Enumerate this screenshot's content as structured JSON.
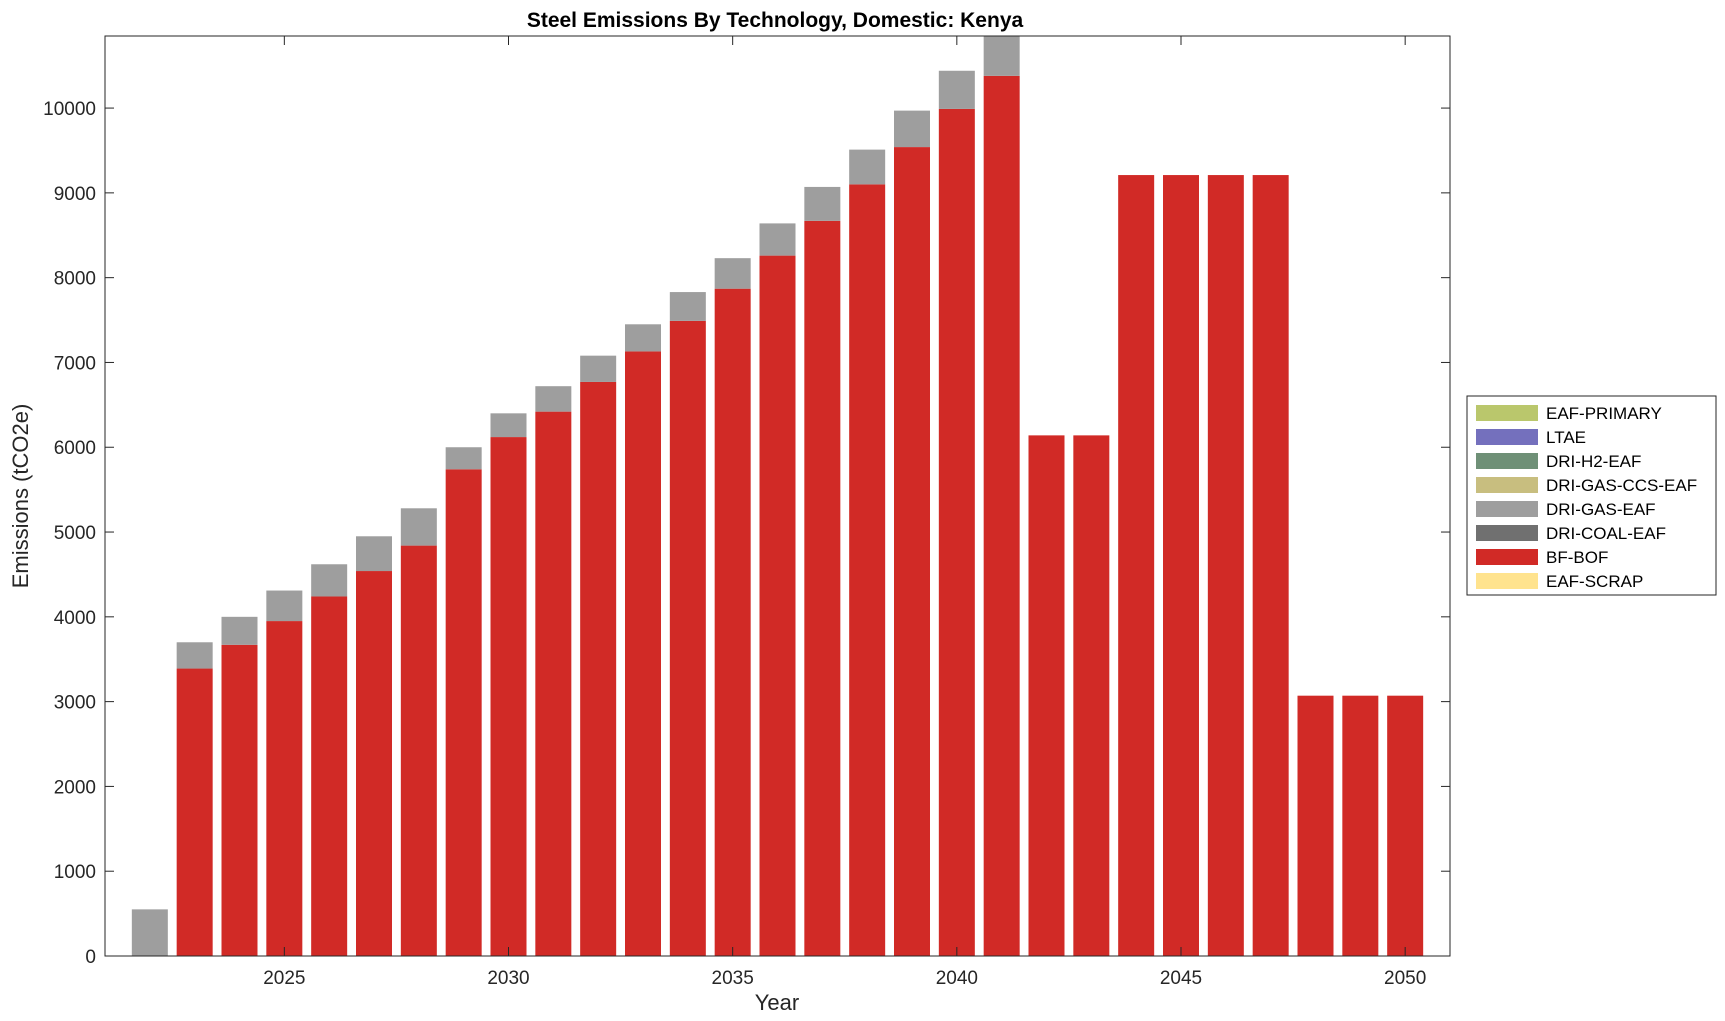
{
  "chart_data": {
    "type": "bar",
    "stacked": true,
    "title": "Steel Emissions By Technology, Domestic: Kenya",
    "xlabel": "Year",
    "ylabel": "Emissions (tCO2e)",
    "xlim": [
      2021,
      2051
    ],
    "ylim": [
      0,
      10850
    ],
    "xticks": [
      2025,
      2030,
      2035,
      2040,
      2045,
      2050
    ],
    "yticks": [
      0,
      1000,
      2000,
      3000,
      4000,
      5000,
      6000,
      7000,
      8000,
      9000,
      10000
    ],
    "grid": false,
    "legend_position": "right",
    "legend_order": [
      "EAF-PRIMARY",
      "LTAE",
      "DRI-H2-EAF",
      "DRI-GAS-CCS-EAF",
      "DRI-GAS-EAF",
      "DRI-COAL-EAF",
      "BF-BOF",
      "EAF-SCRAP"
    ],
    "x": [
      2022,
      2023,
      2024,
      2025,
      2026,
      2027,
      2028,
      2029,
      2030,
      2031,
      2032,
      2033,
      2034,
      2035,
      2036,
      2037,
      2038,
      2039,
      2040,
      2041,
      2042,
      2043,
      2044,
      2045,
      2046,
      2047,
      2048,
      2049,
      2050
    ],
    "series": [
      {
        "name": "EAF-SCRAP",
        "color": "#ffe38e",
        "values": [
          0,
          0,
          0,
          0,
          0,
          0,
          0,
          0,
          0,
          0,
          0,
          0,
          0,
          0,
          0,
          0,
          0,
          0,
          0,
          0,
          0,
          0,
          0,
          0,
          0,
          0,
          0,
          0,
          0
        ]
      },
      {
        "name": "BF-BOF",
        "color": "#d12a26",
        "values": [
          0,
          3390,
          3670,
          3950,
          4240,
          4540,
          4840,
          5740,
          6120,
          6420,
          6770,
          7130,
          7490,
          7870,
          8260,
          8670,
          9100,
          9540,
          9990,
          10380,
          6140,
          6140,
          9210,
          9210,
          9210,
          9210,
          3070,
          3070,
          3070
        ]
      },
      {
        "name": "DRI-COAL-EAF",
        "color": "#707070",
        "values": [
          0,
          0,
          0,
          0,
          0,
          0,
          0,
          0,
          0,
          0,
          0,
          0,
          0,
          0,
          0,
          0,
          0,
          0,
          0,
          0,
          0,
          0,
          0,
          0,
          0,
          0,
          0,
          0,
          0
        ]
      },
      {
        "name": "DRI-GAS-EAF",
        "color": "#9e9e9e",
        "values": [
          550,
          310,
          330,
          360,
          380,
          410,
          440,
          260,
          280,
          300,
          310,
          320,
          340,
          360,
          380,
          400,
          410,
          430,
          450,
          470,
          0,
          0,
          0,
          0,
          0,
          0,
          0,
          0,
          0
        ]
      },
      {
        "name": "DRI-GAS-CCS-EAF",
        "color": "#c8be7f",
        "values": [
          0,
          0,
          0,
          0,
          0,
          0,
          0,
          0,
          0,
          0,
          0,
          0,
          0,
          0,
          0,
          0,
          0,
          0,
          0,
          0,
          0,
          0,
          0,
          0,
          0,
          0,
          0,
          0,
          0
        ]
      },
      {
        "name": "DRI-H2-EAF",
        "color": "#6f9077",
        "values": [
          0,
          0,
          0,
          0,
          0,
          0,
          0,
          0,
          0,
          0,
          0,
          0,
          0,
          0,
          0,
          0,
          0,
          0,
          0,
          0,
          0,
          0,
          0,
          0,
          0,
          0,
          0,
          0,
          0
        ]
      },
      {
        "name": "LTAE",
        "color": "#7470bd",
        "values": [
          0,
          0,
          0,
          0,
          0,
          0,
          0,
          0,
          0,
          0,
          0,
          0,
          0,
          0,
          0,
          0,
          0,
          0,
          0,
          0,
          0,
          0,
          0,
          0,
          0,
          0,
          0,
          0,
          0
        ]
      },
      {
        "name": "EAF-PRIMARY",
        "color": "#bac76c",
        "values": [
          0,
          0,
          0,
          0,
          0,
          0,
          0,
          0,
          0,
          0,
          0,
          0,
          0,
          0,
          0,
          0,
          0,
          0,
          0,
          0,
          0,
          0,
          0,
          0,
          0,
          0,
          0,
          0,
          0
        ]
      }
    ]
  }
}
